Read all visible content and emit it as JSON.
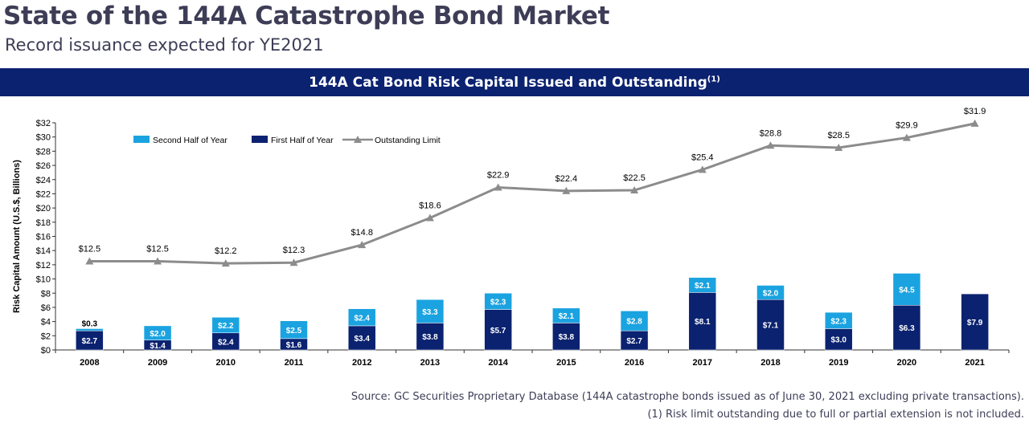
{
  "header": {
    "title": "State of the 144A Catastrophe Bond Market",
    "subtitle": "Record issuance expected for YE2021"
  },
  "banner": {
    "text": "144A Cat Bond Risk Capital Issued and Outstanding",
    "sup": "(1)"
  },
  "footer": {
    "source": "Source: GC Securities Proprietary Database (144A catastrophe bonds issued as of June 30, 2021 excluding private transactions).",
    "note": "(1) Risk limit outstanding due to full or partial extension is not included."
  },
  "colors": {
    "first_half": "#0b2270",
    "second_half": "#1aa3e0",
    "line": "#8c8c8c",
    "banner": "#0b2270"
  },
  "chart_data": {
    "type": "bar",
    "stacked": true,
    "categories": [
      "2008",
      "2009",
      "2010",
      "2011",
      "2012",
      "2013",
      "2014",
      "2015",
      "2016",
      "2017",
      "2018",
      "2019",
      "2020",
      "2021"
    ],
    "series": [
      {
        "name": "First Half of Year",
        "type": "bar",
        "values": [
          2.7,
          1.4,
          2.4,
          1.6,
          3.4,
          3.8,
          5.7,
          3.8,
          2.7,
          8.1,
          7.1,
          3.0,
          6.3,
          7.9
        ],
        "labels": [
          "$2.7",
          "$1.4",
          "$2.4",
          "$1.6",
          "$3.4",
          "$3.8",
          "$5.7",
          "$3.8",
          "$2.7",
          "$8.1",
          "$7.1",
          "$3.0",
          "$6.3",
          "$7.9"
        ]
      },
      {
        "name": "Second Half of Year",
        "type": "bar",
        "values": [
          0.3,
          2.0,
          2.2,
          2.5,
          2.4,
          3.3,
          2.3,
          2.1,
          2.8,
          2.1,
          2.0,
          2.3,
          4.5,
          null
        ],
        "labels": [
          "$0.3",
          "$2.0",
          "$2.2",
          "$2.5",
          "$2.4",
          "$3.3",
          "$2.3",
          "$2.1",
          "$2.8",
          "$2.1",
          "$2.0",
          "$2.3",
          "$4.5",
          null
        ]
      },
      {
        "name": "Outstanding Limit",
        "type": "line",
        "values": [
          12.5,
          12.5,
          12.2,
          12.3,
          14.8,
          18.6,
          22.9,
          22.4,
          22.5,
          25.4,
          28.8,
          28.5,
          29.9,
          31.9
        ],
        "labels": [
          "$12.5",
          "$12.5",
          "$12.2",
          "$12.3",
          "$14.8",
          "$18.6",
          "$22.9",
          "$22.4",
          "$22.5",
          "$25.4",
          "$28.8",
          "$28.5",
          "$29.9",
          "$31.9"
        ]
      }
    ],
    "ylabel": "Risk Capital Amount (U.S.$, Billions)",
    "ylim": [
      0,
      32
    ],
    "yticks": [
      "$0",
      "$2",
      "$4",
      "$6",
      "$8",
      "$10",
      "$12",
      "$14",
      "$16",
      "$18",
      "$20",
      "$22",
      "$24",
      "$26",
      "$28",
      "$30",
      "$32"
    ],
    "legend": [
      "Second Half of Year",
      "First Half of Year",
      "Outstanding Limit"
    ],
    "legend_position": "top-left",
    "grid": false
  }
}
